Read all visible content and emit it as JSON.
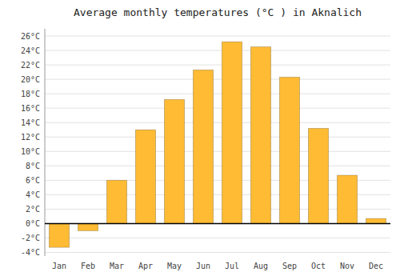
{
  "chart_data": {
    "type": "bar",
    "title": "Average monthly temperatures (°C ) in Aknalich",
    "categories": [
      "Jan",
      "Feb",
      "Mar",
      "Apr",
      "May",
      "Jun",
      "Jul",
      "Aug",
      "Sep",
      "Oct",
      "Nov",
      "Dec"
    ],
    "values": [
      -3.3,
      -1.0,
      6.0,
      13.0,
      17.2,
      21.3,
      25.2,
      24.5,
      20.3,
      13.2,
      6.7,
      0.7
    ],
    "color": "#FFBB33",
    "ylim": [
      -4.5,
      27
    ],
    "yticks": [
      {
        "value": -4,
        "label": "-4°C"
      },
      {
        "value": -2,
        "label": "-2°C"
      },
      {
        "value": 0,
        "label": "0°C"
      },
      {
        "value": 2,
        "label": "2°C"
      },
      {
        "value": 4,
        "label": "4°C"
      },
      {
        "value": 6,
        "label": "6°C"
      },
      {
        "value": 8,
        "label": "8°C"
      },
      {
        "value": 10,
        "label": "10°C"
      },
      {
        "value": 12,
        "label": "12°C"
      },
      {
        "value": 14,
        "label": "14°C"
      },
      {
        "value": 16,
        "label": "16°C"
      },
      {
        "value": 18,
        "label": "18°C"
      },
      {
        "value": 20,
        "label": "20°C"
      },
      {
        "value": 22,
        "label": "22°C"
      },
      {
        "value": 24,
        "label": "24°C"
      },
      {
        "value": 26,
        "label": "26°C"
      }
    ],
    "grid": true
  }
}
